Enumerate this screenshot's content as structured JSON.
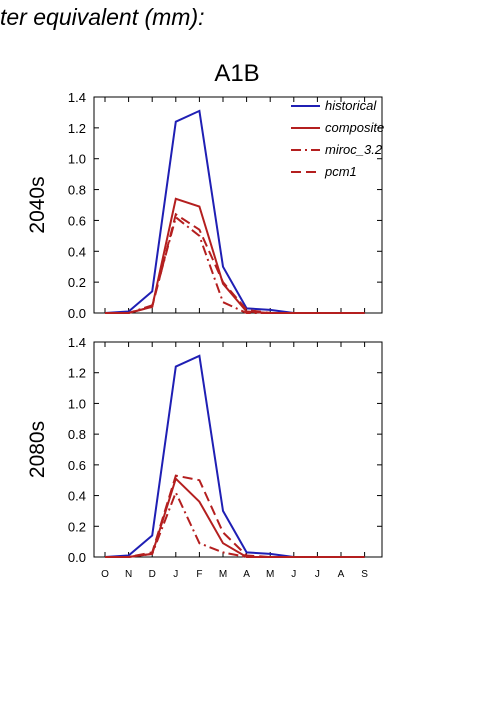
{
  "header": {
    "text": "ter equivalent (mm):"
  },
  "chart_data": {
    "type": "line",
    "title": "A1B",
    "categories": [
      "O",
      "N",
      "D",
      "J",
      "F",
      "M",
      "A",
      "M",
      "J",
      "J",
      "A",
      "S"
    ],
    "ylim": [
      0,
      1.4
    ],
    "yticks": [
      "0.0",
      "0.2",
      "0.4",
      "0.6",
      "0.8",
      "1.0",
      "1.2",
      "1.4"
    ],
    "legend": {
      "position": "top-right",
      "entries": [
        {
          "name": "historical",
          "color": "#1f1fb4",
          "dash": "solid"
        },
        {
          "name": "composite",
          "color": "#b41f1f",
          "dash": "solid"
        },
        {
          "name": "miroc_3.2",
          "color": "#b41f1f",
          "dash": "dashdot"
        },
        {
          "name": "pcm1",
          "color": "#b41f1f",
          "dash": "dashed"
        }
      ]
    },
    "panels": [
      {
        "label": "2040s",
        "series": [
          {
            "name": "historical",
            "values": [
              0.0,
              0.01,
              0.14,
              1.24,
              1.31,
              0.3,
              0.03,
              0.02,
              0.0,
              0.0,
              0.0,
              0.0
            ]
          },
          {
            "name": "composite",
            "values": [
              0.0,
              0.0,
              0.04,
              0.74,
              0.69,
              0.19,
              0.01,
              0.0,
              0.0,
              0.0,
              0.0,
              0.0
            ]
          },
          {
            "name": "miroc_3.2",
            "values": [
              0.0,
              0.0,
              0.05,
              0.62,
              0.5,
              0.07,
              0.0,
              0.0,
              0.0,
              0.0,
              0.0,
              0.0
            ]
          },
          {
            "name": "pcm1",
            "values": [
              0.0,
              0.0,
              0.04,
              0.64,
              0.54,
              0.2,
              0.02,
              0.0,
              0.0,
              0.0,
              0.0,
              0.0
            ]
          }
        ]
      },
      {
        "label": "2080s",
        "series": [
          {
            "name": "historical",
            "values": [
              0.0,
              0.01,
              0.14,
              1.24,
              1.31,
              0.3,
              0.03,
              0.02,
              0.0,
              0.0,
              0.0,
              0.0
            ]
          },
          {
            "name": "composite",
            "values": [
              0.0,
              0.0,
              0.02,
              0.51,
              0.36,
              0.09,
              0.0,
              0.0,
              0.0,
              0.0,
              0.0,
              0.0
            ]
          },
          {
            "name": "miroc_3.2",
            "values": [
              0.0,
              0.0,
              0.02,
              0.42,
              0.09,
              0.03,
              0.0,
              0.0,
              0.0,
              0.0,
              0.0,
              0.0
            ]
          },
          {
            "name": "pcm1",
            "values": [
              0.0,
              0.0,
              0.03,
              0.53,
              0.5,
              0.16,
              0.01,
              0.0,
              0.0,
              0.0,
              0.0,
              0.0
            ]
          }
        ]
      }
    ]
  }
}
